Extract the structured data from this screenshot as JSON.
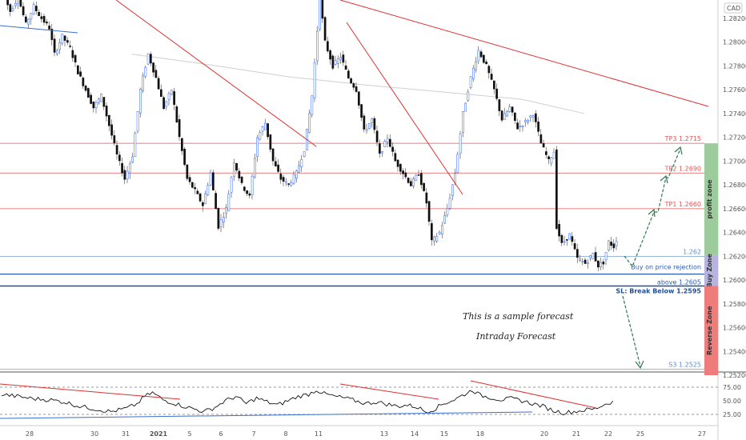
{
  "chart_data": {
    "type": "candlestick",
    "currency_label": "CAD",
    "y_range": [
      1.249,
      1.284
    ],
    "y_ticks": [
      "1.28200",
      "1.28000",
      "1.27800",
      "1.27600",
      "1.27400",
      "1.27200",
      "1.27000",
      "1.26800",
      "1.26600",
      "1.26400",
      "1.26200",
      "1.26000",
      "1.25800",
      "1.25600",
      "1.25400",
      "1.25200"
    ],
    "x_ticks": [
      "28",
      "30",
      "31",
      "2021",
      "5",
      "6",
      "7",
      "8",
      "11",
      "13",
      "14",
      "15",
      "18",
      "20",
      "21",
      "22",
      "25",
      "27"
    ],
    "rsi_ticks": [
      "75.00",
      "50.00",
      "25.00"
    ],
    "rsi_range": [
      0,
      100
    ],
    "levels": [
      {
        "label": "TP3 1.2715",
        "value": 1.2715,
        "color": "#e05555"
      },
      {
        "label": "TP2 1.2690",
        "value": 1.269,
        "color": "#e05555"
      },
      {
        "label": "TP1 1.2660",
        "value": 1.266,
        "color": "#e05555"
      },
      {
        "label": "1.262",
        "value": 1.262,
        "color": "#5b8ccc"
      },
      {
        "label": "Buy on price rejection",
        "value": 1.2605,
        "color": "#2b5cab"
      },
      {
        "label": "above 1.2605",
        "value": 1.2597,
        "color": "#2b5cab"
      },
      {
        "label": "SL: Break Below 1.2595",
        "value": 1.2595,
        "color": "#1d4fa0"
      },
      {
        "label": "S3 1.2525",
        "value": 1.2525,
        "color": "#5b8ccc"
      }
    ],
    "zones": [
      {
        "label": "profit zone",
        "from": 1.2621,
        "to": 1.2715,
        "color": "#9ccc9c"
      },
      {
        "label": "Buy Zone",
        "from": 1.2595,
        "to": 1.2621,
        "color": "#b7b3e0"
      },
      {
        "label": "Reverse Zone",
        "from": 1.252,
        "to": 1.2595,
        "color": "#ef7b7b"
      }
    ],
    "annotations": [
      "This is a sample forecast",
      "Intraday Forecast"
    ],
    "colors": {
      "up": "#2962ff",
      "down": "#111111",
      "trend": "#e03030",
      "support": "#3b6fd0",
      "ma": "#cfcfcf"
    },
    "price_path": [
      [
        0,
        1.2842
      ],
      [
        3,
        1.2826
      ],
      [
        6,
        1.2838
      ],
      [
        9,
        1.2815
      ],
      [
        12,
        1.283
      ],
      [
        15,
        1.282
      ],
      [
        18,
        1.2812
      ],
      [
        20,
        1.279
      ],
      [
        23,
        1.2805
      ],
      [
        26,
        1.2795
      ],
      [
        29,
        1.2775
      ],
      [
        32,
        1.276
      ],
      [
        35,
        1.2745
      ],
      [
        38,
        1.2755
      ],
      [
        41,
        1.273
      ],
      [
        44,
        1.2705
      ],
      [
        47,
        1.2685
      ],
      [
        50,
        1.2705
      ],
      [
        53,
        1.276
      ],
      [
        56,
        1.279
      ],
      [
        59,
        1.277
      ],
      [
        62,
        1.2745
      ],
      [
        65,
        1.276
      ],
      [
        68,
        1.272
      ],
      [
        71,
        1.2685
      ],
      [
        74,
        1.2675
      ],
      [
        77,
        1.2663
      ],
      [
        80,
        1.269
      ],
      [
        83,
        1.2645
      ],
      [
        86,
        1.266
      ],
      [
        89,
        1.27
      ],
      [
        92,
        1.268
      ],
      [
        95,
        1.267
      ],
      [
        98,
        1.272
      ],
      [
        101,
        1.2732
      ],
      [
        104,
        1.27
      ],
      [
        107,
        1.2685
      ],
      [
        110,
        1.268
      ],
      [
        113,
        1.269
      ],
      [
        116,
        1.271
      ],
      [
        119,
        1.2755
      ],
      [
        121,
        1.281
      ],
      [
        122,
        1.2838
      ],
      [
        124,
        1.28
      ],
      [
        127,
        1.278
      ],
      [
        130,
        1.2788
      ],
      [
        133,
        1.277
      ],
      [
        136,
        1.276
      ],
      [
        139,
        1.2725
      ],
      [
        142,
        1.2735
      ],
      [
        145,
        1.2705
      ],
      [
        148,
        1.272
      ],
      [
        151,
        1.27
      ],
      [
        154,
        1.269
      ],
      [
        157,
        1.268
      ],
      [
        160,
        1.269
      ],
      [
        163,
        1.2665
      ],
      [
        165,
        1.2632
      ],
      [
        168,
        1.264
      ],
      [
        171,
        1.266
      ],
      [
        174,
        1.269
      ],
      [
        177,
        1.274
      ],
      [
        180,
        1.277
      ],
      [
        183,
        1.2793
      ],
      [
        186,
        1.278
      ],
      [
        189,
        1.276
      ],
      [
        192,
        1.2735
      ],
      [
        195,
        1.2745
      ],
      [
        198,
        1.2728
      ],
      [
        201,
        1.2733
      ],
      [
        204,
        1.274
      ],
      [
        207,
        1.2715
      ],
      [
        210,
        1.27
      ],
      [
        212,
        1.2708
      ],
      [
        213,
        1.2645
      ],
      [
        215,
        1.263
      ],
      [
        218,
        1.2638
      ],
      [
        221,
        1.2618
      ],
      [
        224,
        1.2614
      ],
      [
        227,
        1.2622
      ],
      [
        229,
        1.2612
      ],
      [
        231,
        1.2615
      ],
      [
        233,
        1.2632
      ],
      [
        235,
        1.2628
      ],
      [
        236,
        1.2634
      ]
    ],
    "rsi_path": [
      [
        0,
        62
      ],
      [
        6,
        58
      ],
      [
        12,
        54
      ],
      [
        18,
        52
      ],
      [
        24,
        48
      ],
      [
        30,
        40
      ],
      [
        36,
        35
      ],
      [
        42,
        30
      ],
      [
        48,
        36
      ],
      [
        52,
        44
      ],
      [
        55,
        58
      ],
      [
        58,
        65
      ],
      [
        62,
        52
      ],
      [
        66,
        46
      ],
      [
        70,
        40
      ],
      [
        74,
        35
      ],
      [
        78,
        30
      ],
      [
        82,
        38
      ],
      [
        86,
        50
      ],
      [
        90,
        58
      ],
      [
        94,
        45
      ],
      [
        98,
        55
      ],
      [
        102,
        48
      ],
      [
        106,
        42
      ],
      [
        110,
        50
      ],
      [
        114,
        58
      ],
      [
        118,
        62
      ],
      [
        121,
        70
      ],
      [
        124,
        63
      ],
      [
        128,
        58
      ],
      [
        132,
        55
      ],
      [
        136,
        50
      ],
      [
        140,
        45
      ],
      [
        144,
        48
      ],
      [
        148,
        44
      ],
      [
        152,
        40
      ],
      [
        156,
        42
      ],
      [
        160,
        38
      ],
      [
        163,
        30
      ],
      [
        166,
        34
      ],
      [
        170,
        45
      ],
      [
        174,
        52
      ],
      [
        178,
        62
      ],
      [
        181,
        70
      ],
      [
        184,
        60
      ],
      [
        188,
        56
      ],
      [
        192,
        52
      ],
      [
        196,
        54
      ],
      [
        200,
        50
      ],
      [
        204,
        45
      ],
      [
        208,
        40
      ],
      [
        212,
        32
      ],
      [
        216,
        28
      ],
      [
        220,
        30
      ],
      [
        224,
        33
      ],
      [
        228,
        35
      ],
      [
        232,
        44
      ],
      [
        236,
        50
      ]
    ],
    "ma_path": [
      [
        50,
        1.279
      ],
      [
        80,
        1.2781
      ],
      [
        110,
        1.2771
      ],
      [
        140,
        1.2764
      ],
      [
        170,
        1.2758
      ],
      [
        200,
        1.2752
      ],
      [
        224,
        1.274
      ]
    ]
  }
}
